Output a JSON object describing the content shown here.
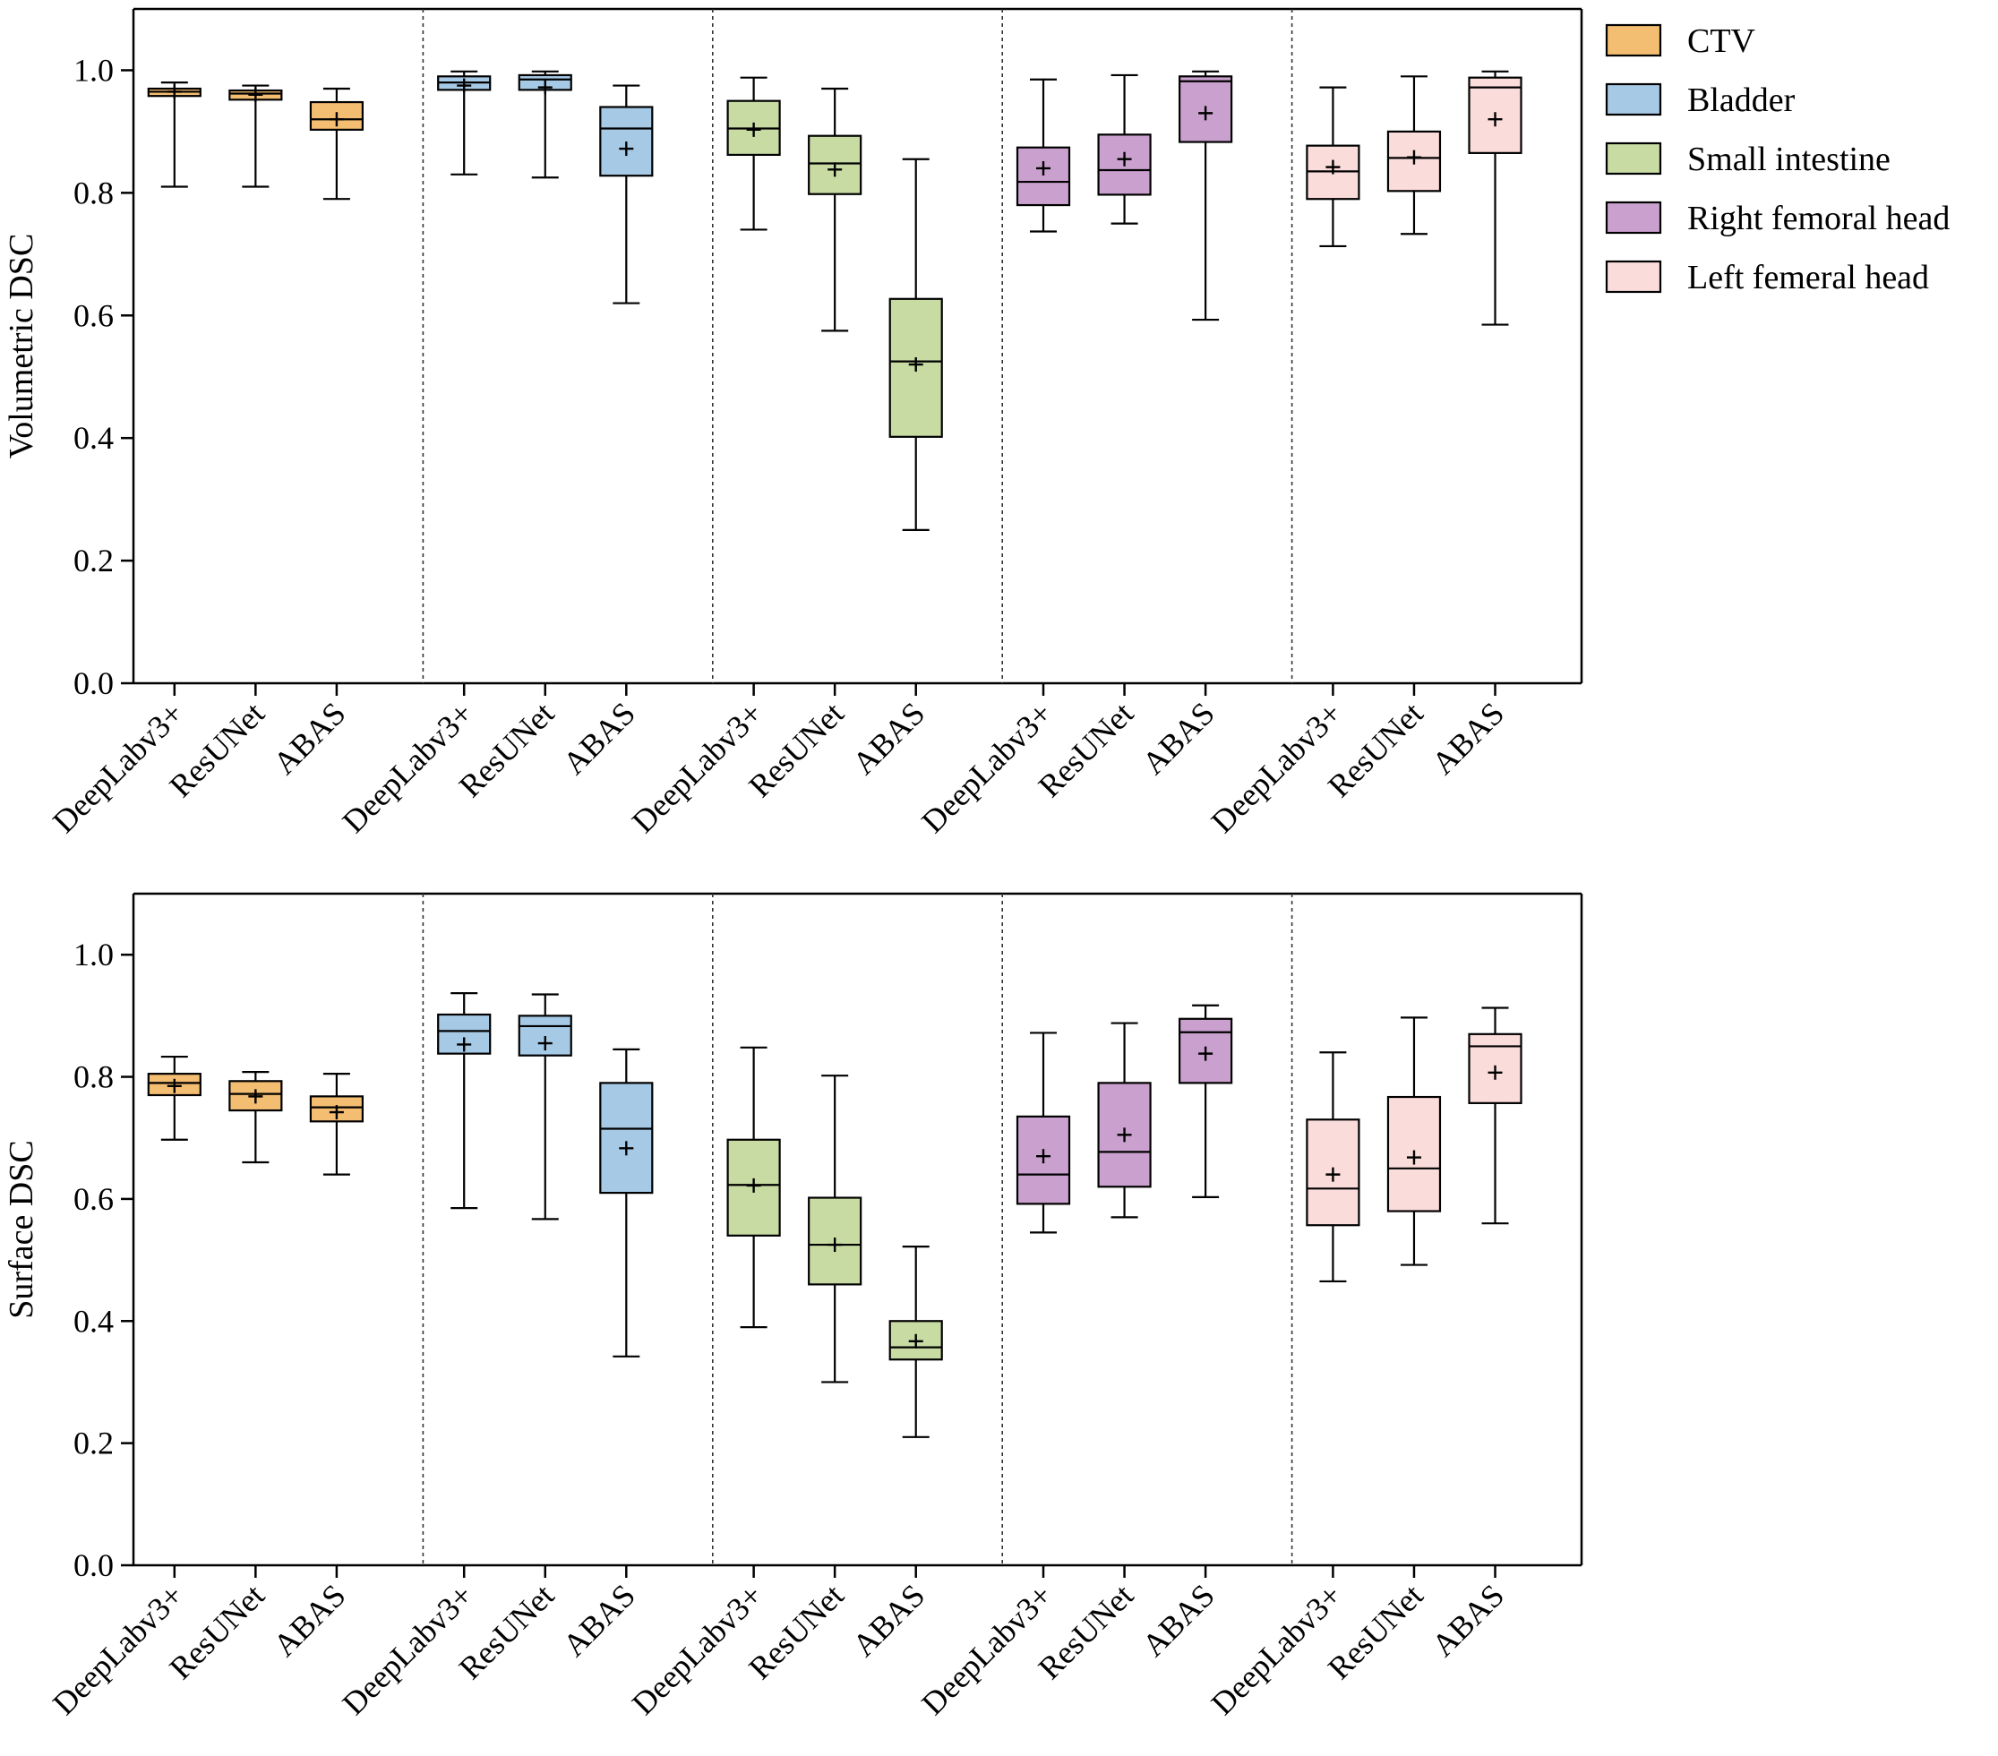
{
  "chart_data": [
    {
      "type": "box",
      "title": "",
      "ylabel": "Volumetric DSC",
      "xlabel": "",
      "ylim": [
        0,
        1.1
      ],
      "yticks": [
        "0.0",
        "0.2",
        "0.4",
        "0.6",
        "0.8",
        "1.0"
      ],
      "groups": [
        {
          "name": "CTV",
          "color": "#f3bd72",
          "boxes": [
            {
              "method": "DeepLabv3+",
              "min": 0.81,
              "q1": 0.958,
              "median": 0.965,
              "q3": 0.97,
              "max": 0.98,
              "mean": 0.965
            },
            {
              "method": "ResUNet",
              "min": 0.81,
              "q1": 0.952,
              "median": 0.962,
              "q3": 0.967,
              "max": 0.975,
              "mean": 0.96
            },
            {
              "method": "ABAS",
              "min": 0.79,
              "q1": 0.903,
              "median": 0.92,
              "q3": 0.948,
              "max": 0.97,
              "mean": 0.92
            }
          ]
        },
        {
          "name": "Bladder",
          "color": "#a6c9e5",
          "boxes": [
            {
              "method": "DeepLabv3+",
              "min": 0.83,
              "q1": 0.968,
              "median": 0.98,
              "q3": 0.99,
              "max": 0.998,
              "mean": 0.975
            },
            {
              "method": "ResUNet",
              "min": 0.825,
              "q1": 0.968,
              "median": 0.985,
              "q3": 0.992,
              "max": 0.998,
              "mean": 0.972
            },
            {
              "method": "ABAS",
              "min": 0.62,
              "q1": 0.828,
              "median": 0.905,
              "q3": 0.94,
              "max": 0.975,
              "mean": 0.872
            }
          ]
        },
        {
          "name": "Small intestine",
          "color": "#c8dba3",
          "boxes": [
            {
              "method": "DeepLabv3+",
              "min": 0.74,
              "q1": 0.862,
              "median": 0.905,
              "q3": 0.95,
              "max": 0.988,
              "mean": 0.903
            },
            {
              "method": "ResUNet",
              "min": 0.575,
              "q1": 0.798,
              "median": 0.848,
              "q3": 0.893,
              "max": 0.97,
              "mean": 0.838
            },
            {
              "method": "ABAS",
              "min": 0.25,
              "q1": 0.402,
              "median": 0.525,
              "q3": 0.627,
              "max": 0.855,
              "mean": 0.52
            }
          ]
        },
        {
          "name": "Right femoral head",
          "color": "#caa1ce",
          "boxes": [
            {
              "method": "DeepLabv3+",
              "min": 0.737,
              "q1": 0.78,
              "median": 0.818,
              "q3": 0.874,
              "max": 0.985,
              "mean": 0.84
            },
            {
              "method": "ResUNet",
              "min": 0.75,
              "q1": 0.797,
              "median": 0.837,
              "q3": 0.895,
              "max": 0.992,
              "mean": 0.855
            },
            {
              "method": "ABAS",
              "min": 0.593,
              "q1": 0.883,
              "median": 0.982,
              "q3": 0.99,
              "max": 0.998,
              "mean": 0.93
            }
          ]
        },
        {
          "name": "Left femeral head",
          "color": "#fadcdb",
          "boxes": [
            {
              "method": "DeepLabv3+",
              "min": 0.713,
              "q1": 0.79,
              "median": 0.835,
              "q3": 0.877,
              "max": 0.972,
              "mean": 0.842
            },
            {
              "method": "ResUNet",
              "min": 0.733,
              "q1": 0.803,
              "median": 0.857,
              "q3": 0.9,
              "max": 0.99,
              "mean": 0.858
            },
            {
              "method": "ABAS",
              "min": 0.585,
              "q1": 0.865,
              "median": 0.972,
              "q3": 0.988,
              "max": 0.998,
              "mean": 0.92
            }
          ]
        }
      ]
    },
    {
      "type": "box",
      "title": "",
      "ylabel": "Surface DSC",
      "xlabel": "",
      "ylim": [
        0,
        1.1
      ],
      "yticks": [
        "0.0",
        "0.2",
        "0.4",
        "0.6",
        "0.8",
        "1.0"
      ],
      "groups": [
        {
          "name": "CTV",
          "color": "#f3bd72",
          "boxes": [
            {
              "method": "DeepLabv3+",
              "min": 0.697,
              "q1": 0.77,
              "median": 0.79,
              "q3": 0.805,
              "max": 0.833,
              "mean": 0.785
            },
            {
              "method": "ResUNet",
              "min": 0.66,
              "q1": 0.745,
              "median": 0.772,
              "q3": 0.793,
              "max": 0.808,
              "mean": 0.768
            },
            {
              "method": "ABAS",
              "min": 0.64,
              "q1": 0.727,
              "median": 0.75,
              "q3": 0.768,
              "max": 0.805,
              "mean": 0.742
            }
          ]
        },
        {
          "name": "Bladder",
          "color": "#a6c9e5",
          "boxes": [
            {
              "method": "DeepLabv3+",
              "min": 0.585,
              "q1": 0.838,
              "median": 0.875,
              "q3": 0.902,
              "max": 0.937,
              "mean": 0.853
            },
            {
              "method": "ResUNet",
              "min": 0.567,
              "q1": 0.835,
              "median": 0.883,
              "q3": 0.9,
              "max": 0.935,
              "mean": 0.855
            },
            {
              "method": "ABAS",
              "min": 0.342,
              "q1": 0.61,
              "median": 0.715,
              "q3": 0.79,
              "max": 0.845,
              "mean": 0.683
            }
          ]
        },
        {
          "name": "Small intestine",
          "color": "#c8dba3",
          "boxes": [
            {
              "method": "DeepLabv3+",
              "min": 0.39,
              "q1": 0.54,
              "median": 0.623,
              "q3": 0.697,
              "max": 0.848,
              "mean": 0.622
            },
            {
              "method": "ResUNet",
              "min": 0.3,
              "q1": 0.46,
              "median": 0.525,
              "q3": 0.602,
              "max": 0.802,
              "mean": 0.525
            },
            {
              "method": "ABAS",
              "min": 0.21,
              "q1": 0.337,
              "median": 0.357,
              "q3": 0.4,
              "max": 0.522,
              "mean": 0.367
            }
          ]
        },
        {
          "name": "Right femoral head",
          "color": "#caa1ce",
          "boxes": [
            {
              "method": "DeepLabv3+",
              "min": 0.545,
              "q1": 0.592,
              "median": 0.64,
              "q3": 0.735,
              "max": 0.872,
              "mean": 0.67
            },
            {
              "method": "ResUNet",
              "min": 0.57,
              "q1": 0.62,
              "median": 0.677,
              "q3": 0.79,
              "max": 0.888,
              "mean": 0.705
            },
            {
              "method": "ABAS",
              "min": 0.603,
              "q1": 0.79,
              "median": 0.873,
              "q3": 0.895,
              "max": 0.917,
              "mean": 0.838
            }
          ]
        },
        {
          "name": "Left femeral head",
          "color": "#fadcdb",
          "boxes": [
            {
              "method": "DeepLabv3+",
              "min": 0.465,
              "q1": 0.557,
              "median": 0.617,
              "q3": 0.73,
              "max": 0.84,
              "mean": 0.64
            },
            {
              "method": "ResUNet",
              "min": 0.492,
              "q1": 0.58,
              "median": 0.65,
              "q3": 0.767,
              "max": 0.897,
              "mean": 0.668
            },
            {
              "method": "ABAS",
              "min": 0.56,
              "q1": 0.757,
              "median": 0.85,
              "q3": 0.87,
              "max": 0.913,
              "mean": 0.807
            }
          ]
        }
      ]
    }
  ],
  "legend": {
    "position": "top-right",
    "items": [
      {
        "label": "CTV",
        "color": "#f3bd72"
      },
      {
        "label": "Bladder",
        "color": "#a6c9e5"
      },
      {
        "label": "Small intestine",
        "color": "#c8dba3"
      },
      {
        "label": "Right femoral head",
        "color": "#caa1ce"
      },
      {
        "label": "Left femeral head",
        "color": "#fadcdb"
      }
    ]
  }
}
